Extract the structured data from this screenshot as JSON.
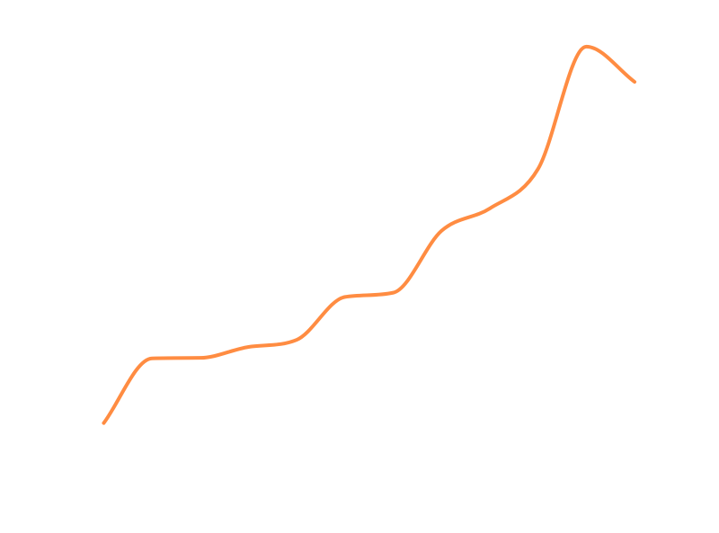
{
  "chart_data": {
    "type": "line",
    "title": "",
    "xlabel": "",
    "ylabel": "",
    "grid": false,
    "legend": "none",
    "x": [
      0,
      1,
      2,
      3,
      4,
      5,
      6,
      7,
      8,
      9,
      10,
      11
    ],
    "series": [
      {
        "values": [
          10.5,
          24.1,
          24.2,
          26.5,
          28.0,
          37.0,
          37.9,
          50.9,
          55.6,
          63.9,
          89.6,
          82.2
        ],
        "color": "#ff8c42"
      }
    ],
    "xlim": [
      -2.15,
      12.75
    ],
    "ylim": [
      -12.6,
      99.4
    ],
    "line_style": "smooth"
  }
}
